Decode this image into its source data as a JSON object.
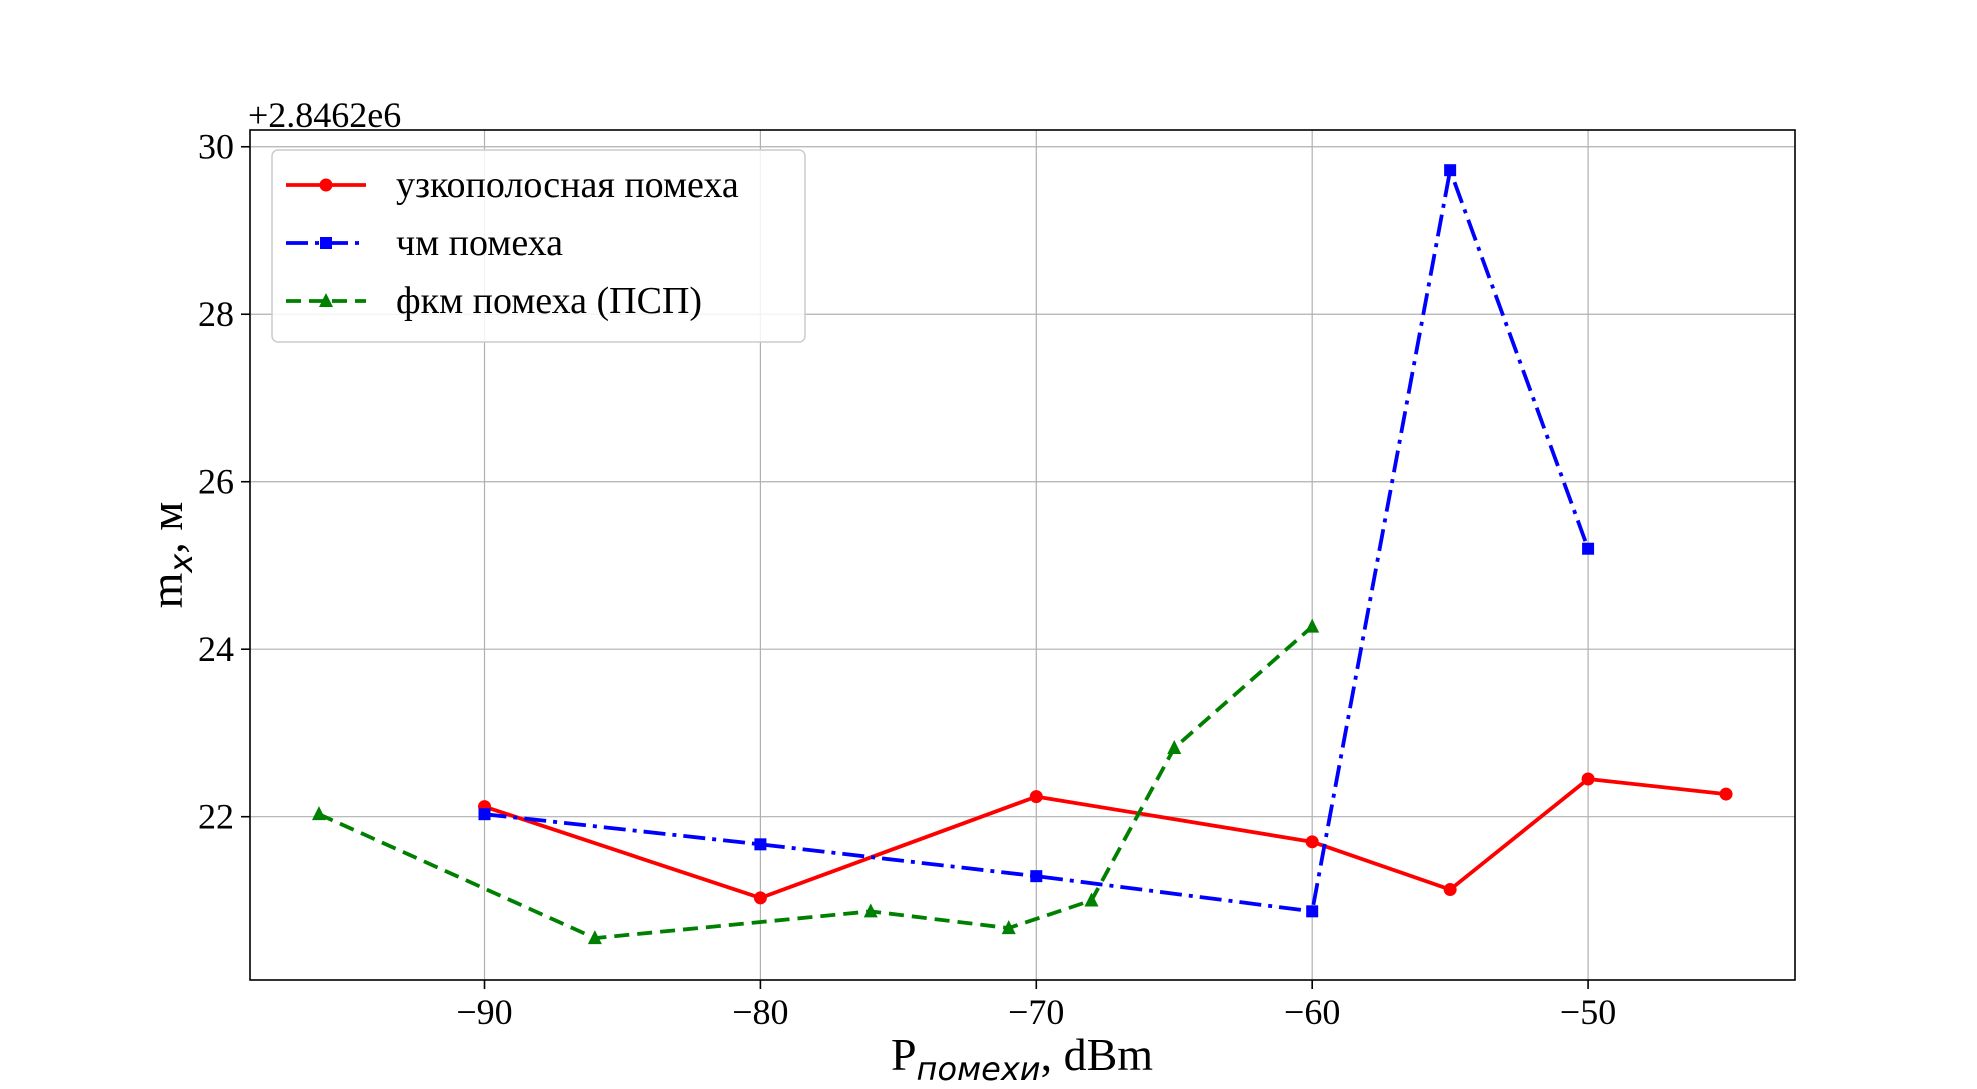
{
  "chart_data": {
    "type": "line",
    "y_offset_label": "+2.8462e6",
    "xlabel": {
      "main": "P",
      "subscript": "помехи",
      "suffix": ", dBm"
    },
    "ylabel": {
      "main": "m",
      "subscript": "x",
      "suffix": ", м"
    },
    "xlim": [
      -98.5,
      -42.5
    ],
    "ylim": [
      20.05,
      30.2
    ],
    "x_ticks": [
      -90,
      -80,
      -70,
      -60,
      -50
    ],
    "x_tick_labels": [
      "−90",
      "−80",
      "−70",
      "−60",
      "−50"
    ],
    "y_ticks": [
      22,
      24,
      26,
      28,
      30
    ],
    "y_tick_labels": [
      "22",
      "24",
      "26",
      "28",
      "30"
    ],
    "grid": true,
    "legend_position": "upper-left",
    "series": [
      {
        "name": "узкополосная помеха",
        "color": "#ff0000",
        "line_style": "solid",
        "marker": "circle",
        "x": [
          -90,
          -80,
          -70,
          -60,
          -55,
          -50,
          -45
        ],
        "y": [
          22.12,
          21.03,
          22.24,
          21.7,
          21.13,
          22.45,
          22.27
        ]
      },
      {
        "name": "чм помеха",
        "color": "#0000ff",
        "line_style": "dashdot",
        "marker": "square",
        "x": [
          -90,
          -80,
          -70,
          -60,
          -55,
          -50
        ],
        "y": [
          22.03,
          21.67,
          21.29,
          20.87,
          29.72,
          25.2
        ]
      },
      {
        "name": "фкм помеха (ПСП)",
        "color": "#008000",
        "line_style": "dashed",
        "marker": "triangle",
        "x": [
          -96,
          -86,
          -76,
          -71,
          -68,
          -65,
          -60
        ],
        "y": [
          22.03,
          20.55,
          20.87,
          20.67,
          21.0,
          22.82,
          24.27
        ]
      }
    ]
  }
}
